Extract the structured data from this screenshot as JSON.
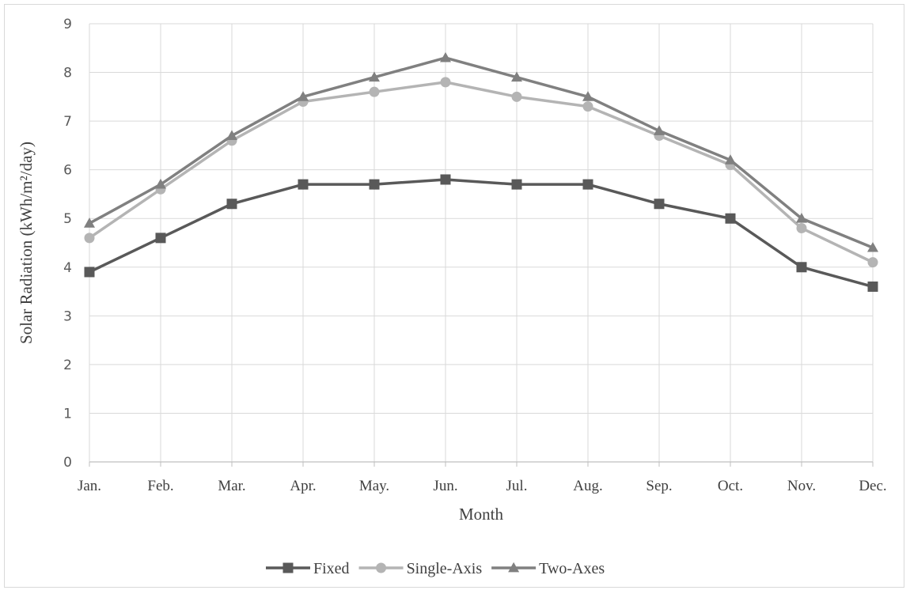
{
  "chart_data": {
    "type": "line",
    "categories": [
      "Jan.",
      "Feb.",
      "Mar.",
      "Apr.",
      "May.",
      "Jun.",
      "Jul.",
      "Aug.",
      "Sep.",
      "Oct.",
      "Nov.",
      "Dec."
    ],
    "series": [
      {
        "name": "Fixed",
        "values": [
          3.9,
          4.6,
          5.3,
          5.7,
          5.7,
          5.8,
          5.7,
          5.7,
          5.3,
          5.0,
          4.0,
          3.6
        ],
        "color": "#595959",
        "marker": "square"
      },
      {
        "name": "Single-Axis",
        "values": [
          4.6,
          5.6,
          6.6,
          7.4,
          7.6,
          7.8,
          7.5,
          7.3,
          6.7,
          6.1,
          4.8,
          4.1
        ],
        "color": "#b4b4b4",
        "marker": "circle"
      },
      {
        "name": "Two-Axes",
        "values": [
          4.9,
          5.7,
          6.7,
          7.5,
          7.9,
          8.3,
          7.9,
          7.5,
          6.8,
          6.2,
          5.0,
          4.4
        ],
        "color": "#808080",
        "marker": "triangle"
      }
    ],
    "xlabel": "Month",
    "ylabel": "Solar Radiation (kWh/m²/day)",
    "ylim": [
      0,
      9
    ],
    "yticks": [
      0,
      1,
      2,
      3,
      4,
      5,
      6,
      7,
      8,
      9
    ],
    "grid": true,
    "legend": "bottom"
  }
}
